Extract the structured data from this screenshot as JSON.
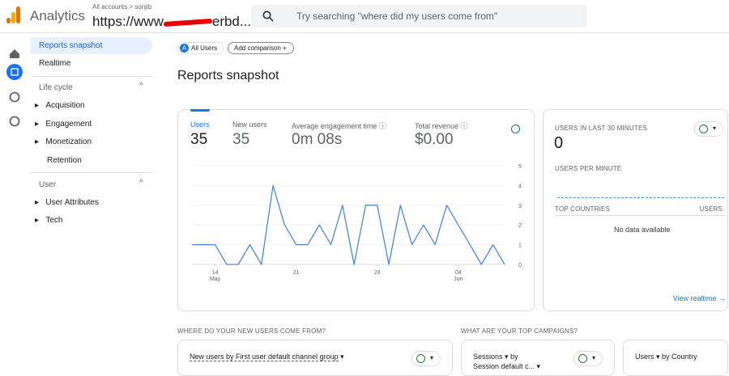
{
  "header": {
    "app": "Analytics",
    "breadcrumb": "All accounts > sonjib",
    "property": "https://www",
    "property_tail": "erbd...",
    "search": "Try searching \"where did my users come from\""
  },
  "nav": {
    "snapshot": "Reports snapshot",
    "realtime": "Realtime",
    "lifecycle": {
      "title": "Life cycle",
      "items": [
        "Acquisition",
        "Engagement",
        "Monetization"
      ],
      "last": "Retention"
    },
    "user": {
      "title": "User",
      "items": [
        "User Attributes",
        "Tech"
      ]
    }
  },
  "toolbar": {
    "badge": "A",
    "segment": "All Users",
    "add": "Add comparison"
  },
  "page_title": "Reports snapshot",
  "metrics": [
    {
      "label": "Users",
      "value": 35
    },
    {
      "label": "New users",
      "value": 35
    },
    {
      "label": "Average engagement time",
      "value": "0m 08s"
    },
    {
      "label": "Total revenue",
      "value": "$0.00"
    }
  ],
  "chart_data": {
    "type": "line",
    "color": "#4a86e8",
    "grid": true,
    "categories": [
      null,
      null,
      [
        "14",
        "May"
      ],
      null,
      null,
      null,
      null,
      null,
      null,
      [
        "21"
      ],
      null,
      null,
      null,
      null,
      null,
      null,
      [
        "28"
      ],
      null,
      null,
      null,
      null,
      null,
      null,
      [
        "04",
        "Jun"
      ],
      null,
      null,
      null,
      null
    ],
    "values": [
      1,
      1,
      1,
      0,
      0,
      1,
      0,
      4,
      2,
      1,
      1,
      2,
      1,
      3,
      0,
      3,
      3,
      0,
      3,
      1,
      2,
      1,
      3,
      2,
      1,
      0,
      1,
      0
    ],
    "ylim": [
      0,
      5
    ],
    "yticks": [
      0,
      1,
      2,
      3,
      4,
      5
    ]
  },
  "realtime": {
    "title": "USERS IN LAST 30 MINUTES",
    "value": 0,
    "per_minute": "USERS PER MINUTE",
    "top": "TOP COUNTRIES",
    "users": "USERS",
    "empty": "No data available",
    "link": "View realtime"
  },
  "bottom": {
    "section1": "WHERE DO YOUR NEW USERS COME FROM?",
    "section2": "WHAT ARE YOUR TOP CAMPAIGNS?",
    "card1": "New users by First user default channel group",
    "card2a": "Sessions",
    "card2b": "by",
    "card2c": "Session default c...",
    "card3a": "Users",
    "card3b": "by Country"
  }
}
